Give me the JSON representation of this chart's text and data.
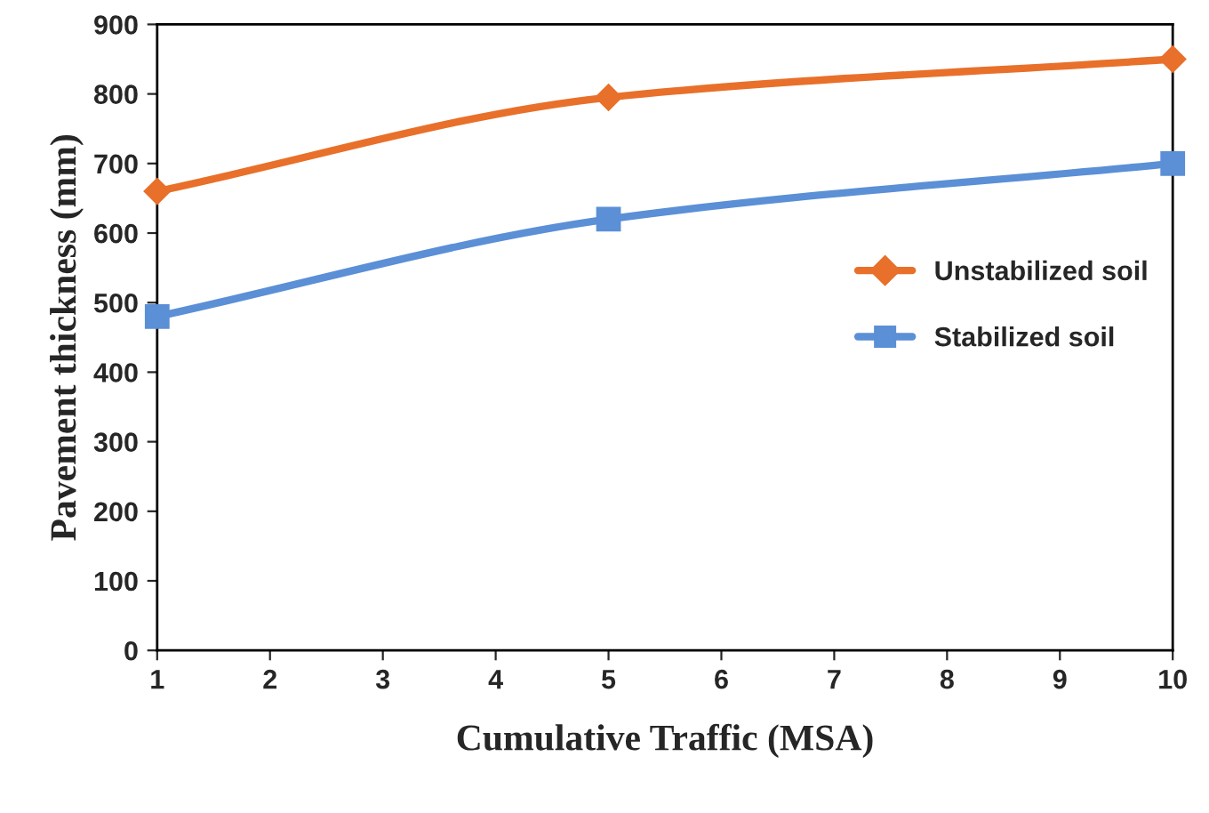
{
  "chart_data": {
    "type": "line",
    "xlabel": "Cumulative Traffic (MSA)",
    "ylabel": "Pavement thickness (mm)",
    "x": [
      1,
      5,
      10
    ],
    "series": [
      {
        "name": "Unstabilized soil",
        "color": "#e8702a",
        "values": [
          660,
          795,
          850
        ],
        "marker": "diamond"
      },
      {
        "name": "Stabilized soil",
        "color": "#5b8fd6",
        "values": [
          480,
          620,
          700
        ],
        "marker": "square"
      }
    ],
    "xlim": [
      1,
      10
    ],
    "xticks": [
      1,
      2,
      3,
      4,
      5,
      6,
      7,
      8,
      9,
      10
    ],
    "ylim": [
      0,
      900
    ],
    "yticks": [
      0,
      100,
      200,
      300,
      400,
      500,
      600,
      700,
      800,
      900
    ],
    "grid": false,
    "legend": "right",
    "line_style": "solid"
  }
}
